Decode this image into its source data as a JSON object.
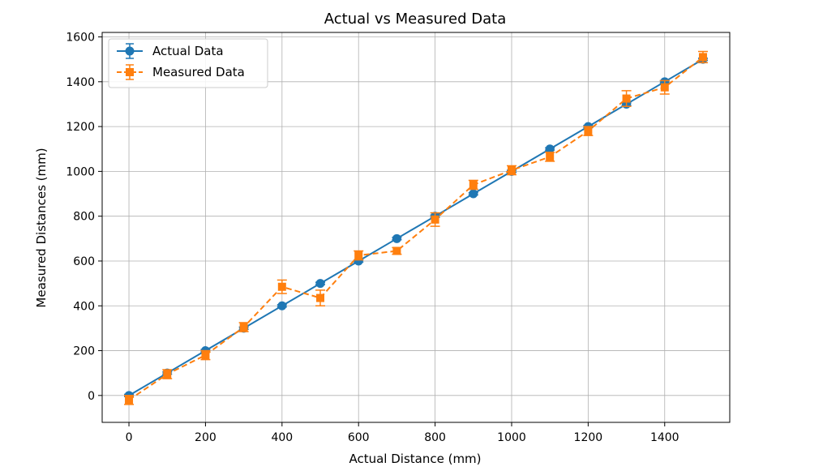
{
  "chart_data": {
    "type": "line",
    "title": "Actual vs Measured Data",
    "xlabel": "Actual Distance (mm)",
    "ylabel": "Measured Distances (mm)",
    "xlim": [
      -70,
      1570
    ],
    "ylim": [
      -120,
      1620
    ],
    "xticks": [
      0,
      200,
      400,
      600,
      800,
      1000,
      1200,
      1400
    ],
    "yticks": [
      0,
      200,
      400,
      600,
      800,
      1000,
      1200,
      1400,
      1600
    ],
    "grid": true,
    "legend_position": "top-left",
    "x": [
      0,
      100,
      200,
      300,
      400,
      500,
      600,
      700,
      800,
      900,
      1000,
      1100,
      1200,
      1300,
      1400,
      1500
    ],
    "series": [
      {
        "name": "Actual Data",
        "color": "#1f77b4",
        "line_style": "solid",
        "marker": "circle",
        "values": [
          0,
          100,
          200,
          300,
          400,
          500,
          600,
          700,
          800,
          900,
          1000,
          1100,
          1200,
          1300,
          1400,
          1500
        ],
        "errors": [
          5,
          5,
          5,
          5,
          5,
          5,
          5,
          5,
          5,
          5,
          5,
          5,
          5,
          5,
          5,
          5
        ]
      },
      {
        "name": "Measured Data",
        "color": "#ff7f0e",
        "line_style": "dashed",
        "marker": "square",
        "values": [
          -20,
          95,
          180,
          305,
          485,
          435,
          625,
          645,
          785,
          940,
          1005,
          1065,
          1180,
          1325,
          1375,
          1510
        ],
        "errors": [
          20,
          20,
          20,
          20,
          30,
          35,
          20,
          15,
          30,
          20,
          20,
          20,
          20,
          35,
          30,
          25
        ]
      }
    ]
  }
}
